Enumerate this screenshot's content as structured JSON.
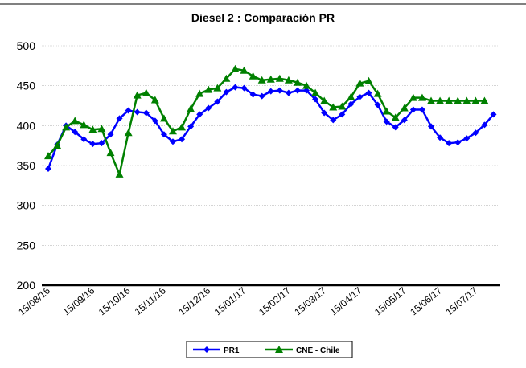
{
  "chart_data": {
    "type": "line",
    "title": "Diesel 2 : Comparación PR",
    "categories": [
      "15/08/16",
      null,
      null,
      null,
      null,
      "15/09/16",
      null,
      null,
      null,
      "15/10/16",
      null,
      null,
      null,
      "15/11/16",
      null,
      null,
      null,
      null,
      "15/12/16",
      null,
      null,
      null,
      "15/01/17",
      null,
      null,
      null,
      null,
      "15/02/17",
      null,
      null,
      null,
      "15/03/17",
      null,
      null,
      null,
      "15/04/17",
      null,
      null,
      null,
      null,
      "15/05/17",
      null,
      null,
      null,
      "15/06/17",
      null,
      null,
      null,
      "15/07/17",
      null,
      null
    ],
    "series": [
      {
        "name": "PR1",
        "color": "#0000ff",
        "marker": "diamond",
        "values": [
          346,
          376,
          400,
          392,
          383,
          377,
          378,
          389,
          409,
          419,
          417,
          416,
          406,
          389,
          380,
          383,
          399,
          414,
          422,
          430,
          442,
          448,
          447,
          439,
          437,
          443,
          444,
          441,
          444,
          444,
          433,
          416,
          407,
          414,
          427,
          436,
          441,
          426,
          405,
          398,
          407,
          420,
          420,
          399,
          385,
          378,
          379,
          384,
          391,
          401,
          414
        ]
      },
      {
        "name": "CNE - Chile",
        "color": "#008000",
        "marker": "triangle",
        "values": [
          362,
          375,
          398,
          406,
          401,
          395,
          396,
          366,
          339,
          391,
          438,
          441,
          432,
          409,
          393,
          398,
          421,
          440,
          445,
          447,
          459,
          471,
          469,
          462,
          457,
          458,
          459,
          457,
          454,
          450,
          441,
          431,
          423,
          424,
          436,
          453,
          456,
          440,
          418,
          410,
          422,
          435,
          435,
          431,
          431,
          431,
          431,
          431,
          431,
          431,
          null
        ]
      }
    ],
    "ylim": [
      200,
      500
    ],
    "yticks": [
      200,
      250,
      300,
      350,
      400,
      450,
      500
    ],
    "grid": true,
    "legend": "bottom"
  }
}
